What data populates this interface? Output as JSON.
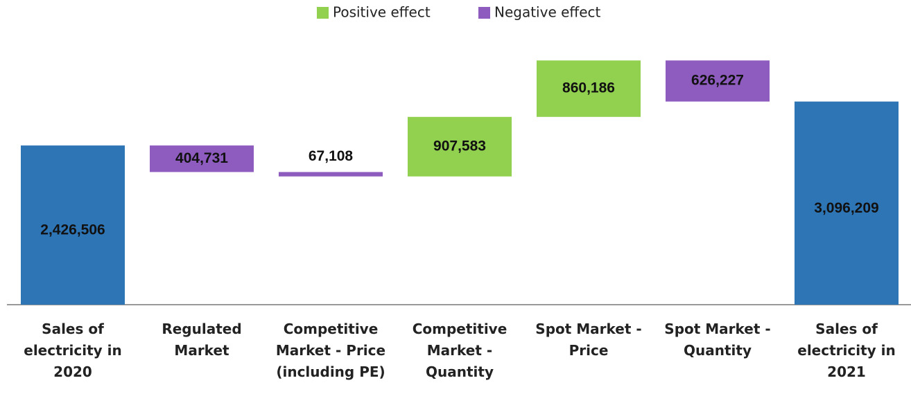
{
  "chart_data": {
    "type": "waterfall",
    "categories": [
      [
        "Sales of",
        "electricity in",
        "2020"
      ],
      [
        "Regulated",
        "Market"
      ],
      [
        "Competitive",
        "Market - Price",
        "(including PE)"
      ],
      [
        "Competitive",
        "Market -",
        "Quantity"
      ],
      [
        "Spot Market -",
        "Price"
      ],
      [
        "Spot Market -",
        "Quantity"
      ],
      [
        "Sales of",
        "electricity in",
        "2021"
      ]
    ],
    "values": [
      2426506,
      -404731,
      -67108,
      907583,
      860186,
      -626227,
      3096209
    ],
    "value_labels": [
      "2,426,506",
      "404,731",
      "67,108",
      "907,583",
      "860,186",
      "626,227",
      "3,096,209"
    ],
    "total_color": "#2e75b6",
    "legend": [
      {
        "name": "Positive effect",
        "color": "#92d050"
      },
      {
        "name": "Negative effect",
        "color": "#8e5bbf"
      }
    ],
    "ylim": [
      0,
      4000000
    ]
  }
}
